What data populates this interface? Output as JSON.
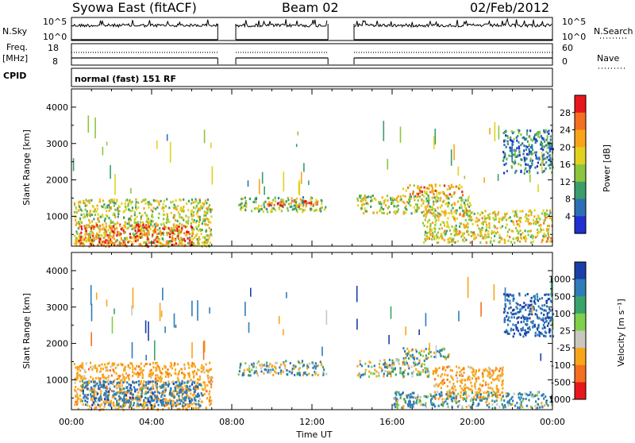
{
  "header": {
    "station": "Syowa East (fitACF)",
    "beam": "Beam 02",
    "date": "02/Feb/2012"
  },
  "strip_labels": {
    "nsky": "N.Sky",
    "nsearch": "N.Search",
    "nave": "Nave",
    "freq_line1": "Freq.",
    "freq_line2": "[MHz]",
    "cpid": "CPID",
    "cpid_value": "normal (fast) 151 RF",
    "noise_ticks_left": [
      "10^5",
      "10^0"
    ],
    "noise_ticks_right": [
      "10^5",
      "10^0"
    ],
    "freq_ticks": [
      "18",
      "8"
    ],
    "nave_ticks": [
      "60",
      "0"
    ]
  },
  "colorbars": {
    "power": {
      "label": "Power [dB]",
      "ticks": [
        "28",
        "24",
        "20",
        "16",
        "12",
        "8",
        "4"
      ],
      "colors": [
        "#e8171c",
        "#f37021",
        "#f9a51a",
        "#e2d21f",
        "#8cc63f",
        "#3a9d6a",
        "#2c6fb5",
        "#1f2fd0"
      ]
    },
    "velocity": {
      "label": "Velocity [m s⁻¹]",
      "ticks": [
        "1000",
        "500",
        "100",
        "25",
        "-25",
        "-100",
        "-500",
        "-1000"
      ],
      "colors": [
        "#1a3fa8",
        "#2e7cb8",
        "#3aa36b",
        "#7fd04a",
        "#c8c8c0",
        "#f9a51a",
        "#f37021",
        "#e8171c"
      ]
    }
  },
  "chart_data": {
    "type": "heatmap",
    "x_unit": "Time UT",
    "xlabel": "Time UT",
    "x_ticks": [
      "00:00",
      "04:00",
      "08:00",
      "12:00",
      "16:00",
      "20:00",
      "00:00"
    ],
    "xlim_hours": [
      0,
      24
    ],
    "ylabel": "Slant Range [km]",
    "ylim": [
      180,
      4500
    ],
    "y_ticks": [
      1000,
      2000,
      3000,
      4000
    ],
    "data_gaps_hours": [
      [
        7.3,
        8.2
      ],
      [
        12.8,
        14.1
      ]
    ],
    "panels": [
      {
        "name": "Power",
        "echo_regions": [
          {
            "t0": 0.1,
            "t1": 7.0,
            "r0": 200,
            "r1": 1500,
            "value": 14
          },
          {
            "t0": 0.3,
            "t1": 6.0,
            "r0": 200,
            "r1": 800,
            "value": 24
          },
          {
            "t0": 8.3,
            "t1": 12.7,
            "r0": 1150,
            "r1": 1550,
            "value": 12
          },
          {
            "t0": 9.6,
            "t1": 12.3,
            "r0": 1300,
            "r1": 1450,
            "value": 24
          },
          {
            "t0": 14.2,
            "t1": 20.0,
            "r0": 1100,
            "r1": 1600,
            "value": 14
          },
          {
            "t0": 16.5,
            "t1": 19.5,
            "r0": 1600,
            "r1": 1900,
            "value": 20
          },
          {
            "t0": 17.5,
            "t1": 24.0,
            "r0": 300,
            "r1": 1200,
            "value": 16
          },
          {
            "t0": 21.5,
            "t1": 24.0,
            "r0": 2200,
            "r1": 3400,
            "value": 6
          }
        ]
      },
      {
        "name": "Velocity",
        "echo_regions": [
          {
            "t0": 0.1,
            "t1": 7.0,
            "r0": 200,
            "r1": 1500,
            "value": -300
          },
          {
            "t0": 0.5,
            "t1": 6.5,
            "r0": 300,
            "r1": 1000,
            "value": 300
          },
          {
            "t0": 8.3,
            "t1": 12.7,
            "r0": 1150,
            "r1": 1550,
            "value": 0
          },
          {
            "t0": 14.2,
            "t1": 17.8,
            "r0": 1100,
            "r1": 1600,
            "value": 0
          },
          {
            "t0": 16.5,
            "t1": 18.8,
            "r0": 1600,
            "r1": 1900,
            "value": 50
          },
          {
            "t0": 18.0,
            "t1": 21.5,
            "r0": 500,
            "r1": 1400,
            "value": -300
          },
          {
            "t0": 16.0,
            "t1": 24.0,
            "r0": 250,
            "r1": 700,
            "value": 100
          },
          {
            "t0": 21.5,
            "t1": 24.0,
            "r0": 2200,
            "r1": 3400,
            "value": 500
          }
        ]
      }
    ]
  }
}
